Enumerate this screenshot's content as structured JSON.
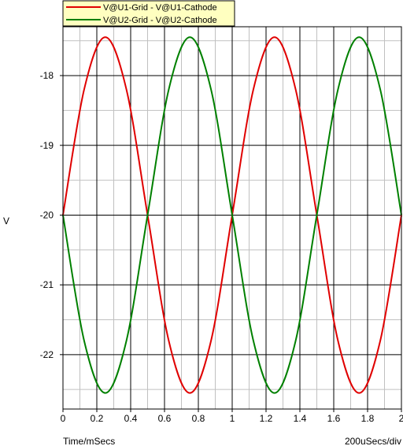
{
  "chart_data": {
    "type": "line",
    "xlabel": "Time/mSecs",
    "ylabel": "V",
    "x_division": "200uSecs/div",
    "xlim": [
      0,
      2
    ],
    "ylim": [
      -22.78,
      -17.3
    ],
    "x_ticks": [
      "0",
      "0.2",
      "0.4",
      "0.6",
      "0.8",
      "1",
      "1.2",
      "1.4",
      "1.6",
      "1.8",
      "2"
    ],
    "y_ticks": [
      -18,
      -19,
      -20,
      -21,
      -22
    ],
    "y_tick_labels": [
      "-18",
      "-19",
      "-20",
      "-21",
      "-22"
    ],
    "grid": true,
    "legend_placement": "top-left",
    "series": [
      {
        "name": "V@U1-Grid - V@U1-Cathode",
        "color": "#e00000",
        "x": [
          0,
          0.125,
          0.25,
          0.375,
          0.5,
          0.625,
          0.75,
          0.875,
          1.0,
          1.125,
          1.25,
          1.375,
          1.5,
          1.625,
          1.75,
          1.875,
          2.0
        ],
        "values": [
          -20,
          -18.2,
          -17.45,
          -18.2,
          -20,
          -21.8,
          -22.55,
          -21.8,
          -20,
          -18.2,
          -17.45,
          -18.2,
          -20,
          -21.8,
          -22.55,
          -21.8,
          -20
        ]
      },
      {
        "name": "V@U2-Grid - V@U2-Cathode",
        "color": "#008000",
        "x": [
          0,
          0.125,
          0.25,
          0.375,
          0.5,
          0.625,
          0.75,
          0.875,
          1.0,
          1.125,
          1.25,
          1.375,
          1.5,
          1.625,
          1.75,
          1.875,
          2.0
        ],
        "values": [
          -20,
          -21.8,
          -22.55,
          -21.8,
          -20,
          -18.2,
          -17.45,
          -18.2,
          -20,
          -21.8,
          -22.55,
          -21.8,
          -20,
          -18.2,
          -17.45,
          -18.2,
          -20
        ]
      }
    ]
  }
}
